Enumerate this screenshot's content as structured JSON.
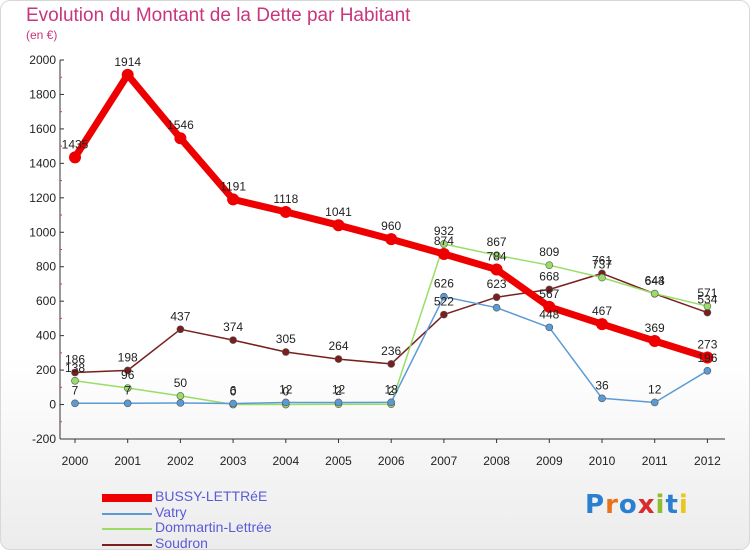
{
  "title": "Evolution du Montant de la Dette par Habitant",
  "unit": "(en €)",
  "logo": {
    "text": "Proxiti",
    "letter_colors": [
      "#2b7fd0",
      "#e8731c",
      "#2b7fd0",
      "#d92b2b",
      "#8fbe2a",
      "#2b7fd0",
      "#e8c81c"
    ]
  },
  "chart_data": {
    "type": "line",
    "x": [
      "2000",
      "2001",
      "2002",
      "2003",
      "2004",
      "2005",
      "2006",
      "2007",
      "2008",
      "2009",
      "2010",
      "2011",
      "2012"
    ],
    "ylim": [
      -200,
      2000
    ],
    "yticks": [
      "-200",
      "0",
      "200",
      "400",
      "600",
      "800",
      "1000",
      "1200",
      "1400",
      "1600",
      "1800",
      "2000"
    ],
    "grid": false,
    "legend_position": "bottom-left",
    "series": [
      {
        "name": "BUSSY-LETTRéE",
        "color": "#ee0000",
        "values": [
          1435,
          1914,
          1546,
          1191,
          1118,
          1041,
          960,
          874,
          784,
          567,
          467,
          369,
          273
        ],
        "labels": [
          "1435",
          "1914",
          "1546",
          "1191",
          "1118",
          "1041",
          "960",
          "874",
          "784",
          "567",
          "467",
          "369",
          "273"
        ]
      },
      {
        "name": "Vatry",
        "color": "#5b9bd5",
        "values": [
          7,
          7,
          9,
          6,
          12,
          12,
          13,
          626,
          562,
          448,
          36,
          12,
          196
        ],
        "labels": [
          "7",
          "7",
          "",
          "6",
          "12",
          "12",
          "13",
          "626",
          "",
          "448",
          "36",
          "12",
          "196"
        ]
      },
      {
        "name": "Dommartin-Lettrée",
        "color": "#99dd66",
        "values": [
          138,
          96,
          50,
          0,
          0,
          2,
          2,
          932,
          867,
          809,
          737,
          644,
          571
        ],
        "labels": [
          "138",
          "96",
          "50",
          "0",
          "0",
          "2",
          "2",
          "932",
          "867",
          "809",
          "737",
          "644",
          "571"
        ]
      },
      {
        "name": "Soudron",
        "color": "#7a1e1e",
        "values": [
          186,
          198,
          437,
          374,
          305,
          264,
          236,
          522,
          623,
          668,
          761,
          643,
          534
        ],
        "labels": [
          "186",
          "198",
          "437",
          "374",
          "305",
          "264",
          "236",
          "522",
          "623",
          "668",
          "761",
          "643",
          "534"
        ]
      }
    ]
  }
}
